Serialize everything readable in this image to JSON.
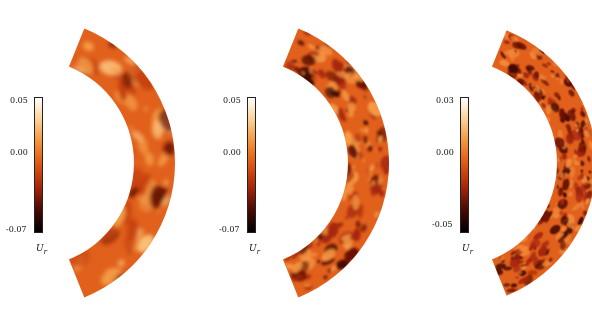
{
  "colormap": {
    "stops": [
      "#000000",
      "#4a0a04",
      "#a5250a",
      "#dd5412",
      "#f39038",
      "#fbcf92",
      "#ffffff"
    ]
  },
  "panels": [
    {
      "cbar_max": "0.05",
      "cbar_mid": "0.00",
      "cbar_min": "-0.07",
      "var_symbol": "U",
      "var_sub": "r",
      "style": "smooth"
    },
    {
      "cbar_max": "0.05",
      "cbar_mid": "0.00",
      "cbar_min": "-0.07",
      "var_symbol": "U",
      "var_sub": "r",
      "style": "patchy"
    },
    {
      "cbar_max": "0.03",
      "cbar_mid": "0.00",
      "cbar_min": "-0.05",
      "var_symbol": "U",
      "var_sub": "r",
      "style": "fine"
    }
  ]
}
